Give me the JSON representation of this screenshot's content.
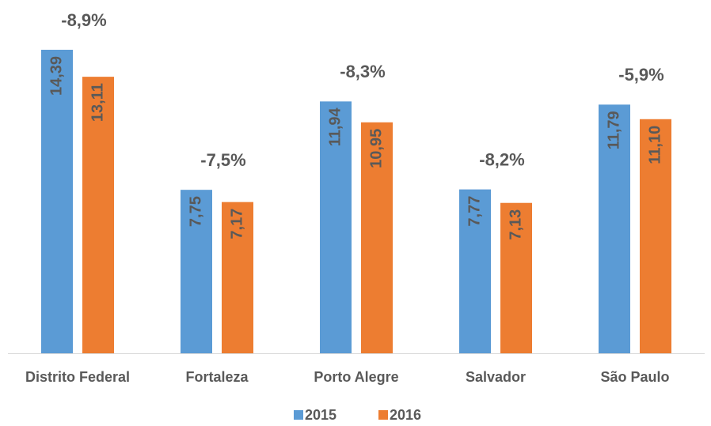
{
  "chart_data": {
    "type": "bar",
    "categories": [
      "Distrito Federal",
      "Fortaleza",
      "Porto Alegre",
      "Salvador",
      "São Paulo"
    ],
    "series": [
      {
        "name": "2015",
        "color": "#5b9bd5",
        "values": [
          14.39,
          7.75,
          11.94,
          7.77,
          11.79
        ],
        "value_labels": [
          "14,39",
          "7,75",
          "11,94",
          "7,77",
          "11,79"
        ]
      },
      {
        "name": "2016",
        "color": "#ed7d31",
        "values": [
          13.11,
          7.17,
          10.95,
          7.13,
          11.1
        ],
        "value_labels": [
          "13,11",
          "7,17",
          "10,95",
          "7,13",
          "11,10"
        ]
      }
    ],
    "annotations": [
      "-8,9%",
      "-7,5%",
      "-8,3%",
      "-8,2%",
      "-5,9%"
    ],
    "ylim": [
      0,
      16
    ],
    "legend": "bottom"
  }
}
